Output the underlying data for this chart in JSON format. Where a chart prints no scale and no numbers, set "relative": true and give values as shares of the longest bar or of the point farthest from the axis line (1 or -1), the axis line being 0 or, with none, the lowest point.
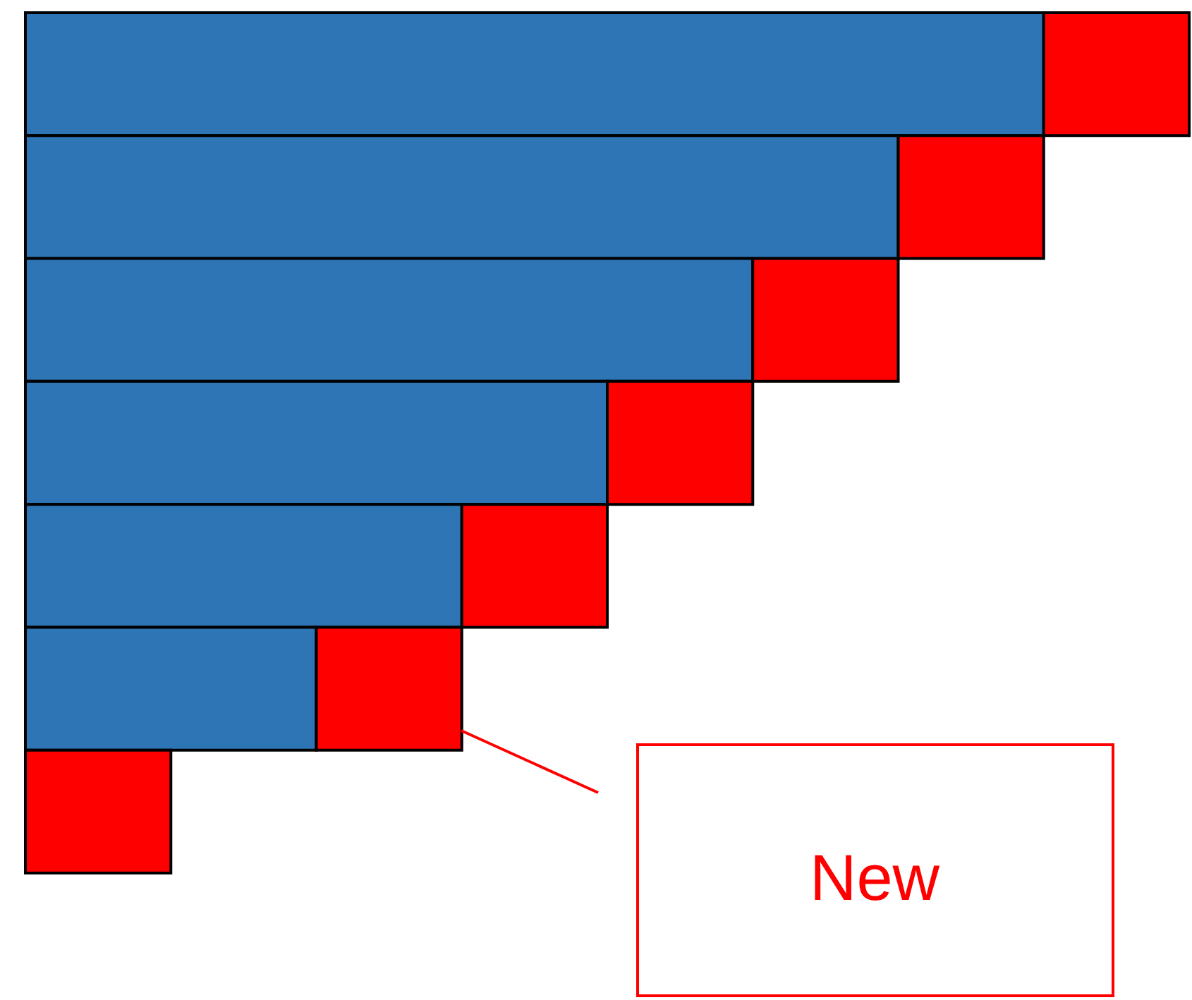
{
  "chart_data": {
    "type": "bar",
    "orientation": "horizontal",
    "stacked": true,
    "relative": true,
    "categories": [
      null,
      null,
      null,
      null,
      null,
      null,
      null
    ],
    "series": [
      {
        "color": "#2e75b6",
        "values": [
          0.875,
          0.75,
          0.625,
          0.5,
          0.375,
          0.25,
          0
        ]
      },
      {
        "color": "#ff0000",
        "values": [
          0.125,
          0.125,
          0.125,
          0.125,
          0.125,
          0.125,
          0.125
        ]
      }
    ],
    "annotations": [
      "New"
    ]
  }
}
